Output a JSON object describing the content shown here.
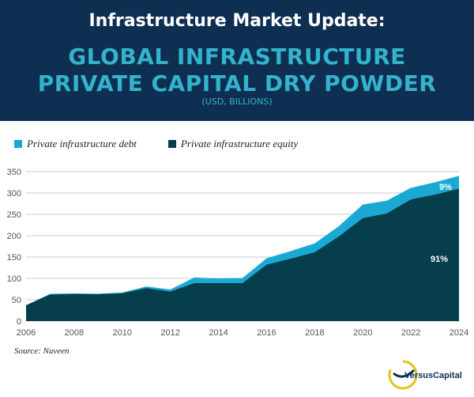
{
  "header": {
    "kicker": "Infrastructure Market Update:",
    "title_line1": "GLOBAL INFRASTRUCTURE",
    "title_line2": "PRIVATE CAPITAL DRY POWDER",
    "units": "(USD, BILLIONS)"
  },
  "colors": {
    "header_bg": "#0e2e52",
    "debt": "#1ba9d4",
    "equity": "#063f4b",
    "title_accent": "#33b3cc"
  },
  "chart_data": {
    "type": "area",
    "stacked": true,
    "x": [
      2006,
      2007,
      2008,
      2009,
      2010,
      2011,
      2012,
      2013,
      2014,
      2015,
      2016,
      2017,
      2018,
      2019,
      2020,
      2021,
      2022,
      2023,
      2024
    ],
    "series": [
      {
        "name": "Private infrastructure equity",
        "values": [
          37,
          62,
          63,
          63,
          65,
          77,
          69,
          89,
          89,
          89,
          132,
          146,
          161,
          198,
          241,
          252,
          285,
          296,
          310
        ]
      },
      {
        "name": "Private infrastructure debt",
        "values": [
          0,
          2,
          2,
          1,
          2,
          4,
          5,
          13,
          11,
          12,
          15,
          18,
          21,
          24,
          32,
          30,
          27,
          29,
          30
        ]
      }
    ],
    "ylim": [
      0,
      350
    ],
    "yticks": [
      0,
      50,
      100,
      150,
      200,
      250,
      300,
      350
    ],
    "xticks": [
      2006,
      2008,
      2010,
      2012,
      2014,
      2016,
      2018,
      2020,
      2022,
      2024
    ],
    "grid": true,
    "legend_position": "top-left",
    "annotations": {
      "debt_share": "9%",
      "equity_share": "91%"
    }
  },
  "source": "Source: Nuveen",
  "logo_text": "VersusCapital"
}
